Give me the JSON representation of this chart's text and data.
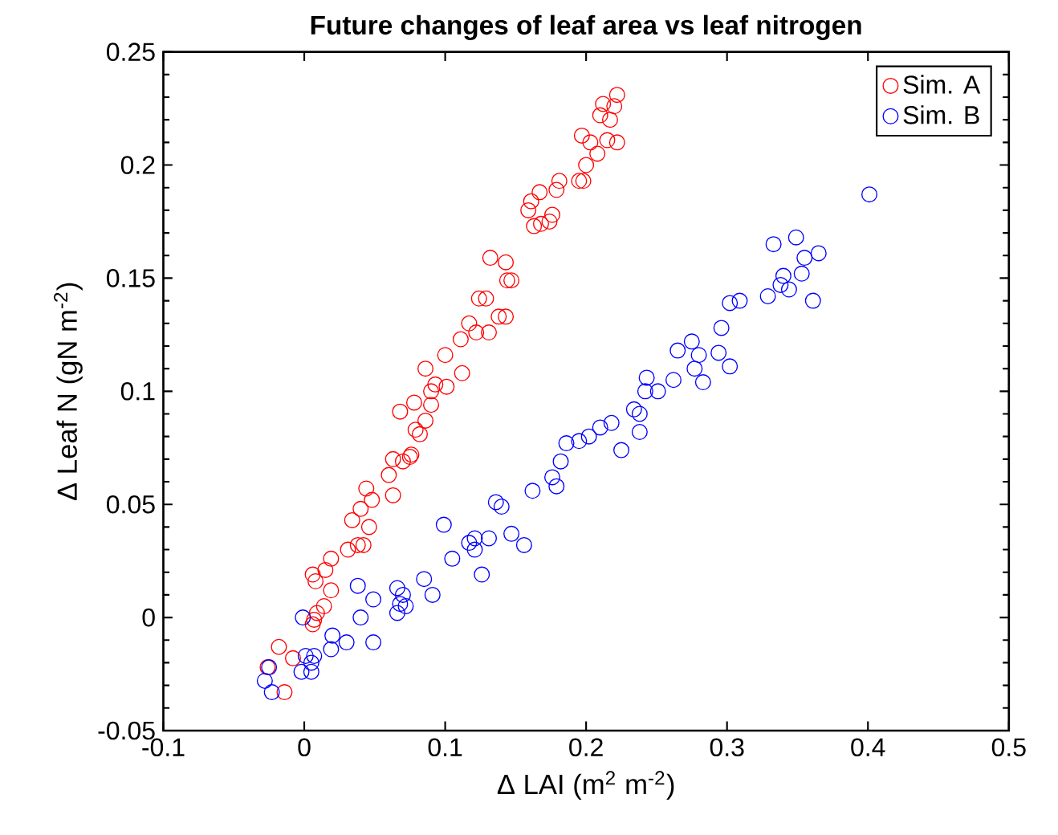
{
  "chart_data": {
    "type": "scatter",
    "title": "**Future changes of leaf area vs leaf nitrogen**",
    "xlabel": "Δ LAI (m$^{2}$ m$^{-2}$)",
    "ylabel": "Δ Leaf N (gN m$^{-2}$)",
    "xlim": [
      -0.1,
      0.5
    ],
    "xticks": [
      -0.1,
      0,
      0.1,
      0.2,
      0.3,
      0.4,
      0.5
    ],
    "ylim": [
      -0.05,
      0.25
    ],
    "yticks": [
      -0.05,
      0,
      0.05,
      0.1,
      0.15,
      0.2,
      0.25
    ],
    "grid": false,
    "legend": "top right",
    "marker": "circle",
    "series": [
      {
        "name": "Sim. A",
        "color": "#ff0000",
        "x": [
          0.222,
          0.212,
          0.22,
          0.21,
          0.217,
          0.197,
          0.203,
          0.215,
          0.208,
          0.222,
          0.2,
          0.195,
          0.198,
          0.181,
          0.179,
          0.167,
          0.161,
          0.159,
          0.176,
          0.163,
          0.168,
          0.174,
          0.132,
          0.143,
          0.144,
          0.147,
          0.124,
          0.129,
          0.117,
          0.122,
          0.131,
          0.138,
          0.143,
          0.111,
          0.1,
          0.112,
          0.086,
          0.093,
          0.101,
          0.09,
          0.078,
          0.09,
          0.068,
          0.086,
          0.079,
          0.082,
          0.076,
          0.063,
          0.07,
          0.075,
          0.06,
          0.063,
          0.044,
          0.048,
          0.04,
          0.034,
          0.046,
          0.038,
          0.042,
          0.031,
          0.019,
          0.015,
          0.006,
          0.008,
          0.019,
          0.014,
          0.009,
          0.007,
          0.006,
          -0.018,
          -0.008,
          -0.026,
          -0.014
        ],
        "values": [
          0.231,
          0.227,
          0.226,
          0.222,
          0.22,
          0.213,
          0.21,
          0.211,
          0.205,
          0.21,
          0.2,
          0.193,
          0.193,
          0.193,
          0.189,
          0.188,
          0.184,
          0.18,
          0.178,
          0.173,
          0.174,
          0.175,
          0.159,
          0.157,
          0.149,
          0.149,
          0.141,
          0.141,
          0.13,
          0.126,
          0.126,
          0.133,
          0.133,
          0.123,
          0.116,
          0.108,
          0.11,
          0.103,
          0.102,
          0.1,
          0.095,
          0.094,
          0.091,
          0.087,
          0.083,
          0.081,
          0.072,
          0.07,
          0.069,
          0.071,
          0.063,
          0.054,
          0.057,
          0.052,
          0.048,
          0.043,
          0.04,
          0.032,
          0.032,
          0.03,
          0.026,
          0.021,
          0.019,
          0.016,
          0.012,
          0.005,
          0.002,
          -0.001,
          -0.003,
          -0.013,
          -0.018,
          -0.022,
          -0.033
        ]
      },
      {
        "name": "Sim. B",
        "color": "#0000ff",
        "x": [
          0.401,
          0.349,
          0.333,
          0.365,
          0.355,
          0.353,
          0.34,
          0.338,
          0.344,
          0.329,
          0.361,
          0.302,
          0.309,
          0.296,
          0.275,
          0.265,
          0.28,
          0.294,
          0.302,
          0.277,
          0.283,
          0.262,
          0.243,
          0.242,
          0.251,
          0.234,
          0.238,
          0.238,
          0.225,
          0.218,
          0.21,
          0.202,
          0.195,
          0.186,
          0.182,
          0.176,
          0.179,
          0.162,
          0.136,
          0.14,
          0.099,
          0.147,
          0.156,
          0.131,
          0.121,
          0.117,
          0.121,
          0.105,
          0.126,
          0.085,
          0.091,
          0.066,
          0.07,
          0.068,
          0.072,
          0.066,
          0.038,
          0.049,
          0.04,
          0.049,
          -0.001,
          0.02,
          0.03,
          0.019,
          0.001,
          0.007,
          0.005,
          -0.002,
          0.005,
          -0.025,
          -0.028,
          -0.023
        ],
        "values": [
          0.187,
          0.168,
          0.165,
          0.161,
          0.159,
          0.152,
          0.151,
          0.147,
          0.145,
          0.142,
          0.14,
          0.139,
          0.14,
          0.128,
          0.122,
          0.118,
          0.116,
          0.117,
          0.111,
          0.11,
          0.104,
          0.105,
          0.106,
          0.1,
          0.1,
          0.092,
          0.09,
          0.082,
          0.074,
          0.086,
          0.084,
          0.08,
          0.078,
          0.077,
          0.069,
          0.062,
          0.058,
          0.056,
          0.051,
          0.049,
          0.041,
          0.037,
          0.032,
          0.035,
          0.035,
          0.033,
          0.03,
          0.026,
          0.019,
          0.017,
          0.01,
          0.013,
          0.01,
          0.006,
          0.005,
          0.002,
          0.014,
          0.008,
          0.0,
          -0.011,
          0.0,
          -0.008,
          -0.011,
          -0.014,
          -0.017,
          -0.017,
          -0.02,
          -0.024,
          -0.024,
          -0.022,
          -0.028,
          -0.033
        ]
      }
    ]
  }
}
